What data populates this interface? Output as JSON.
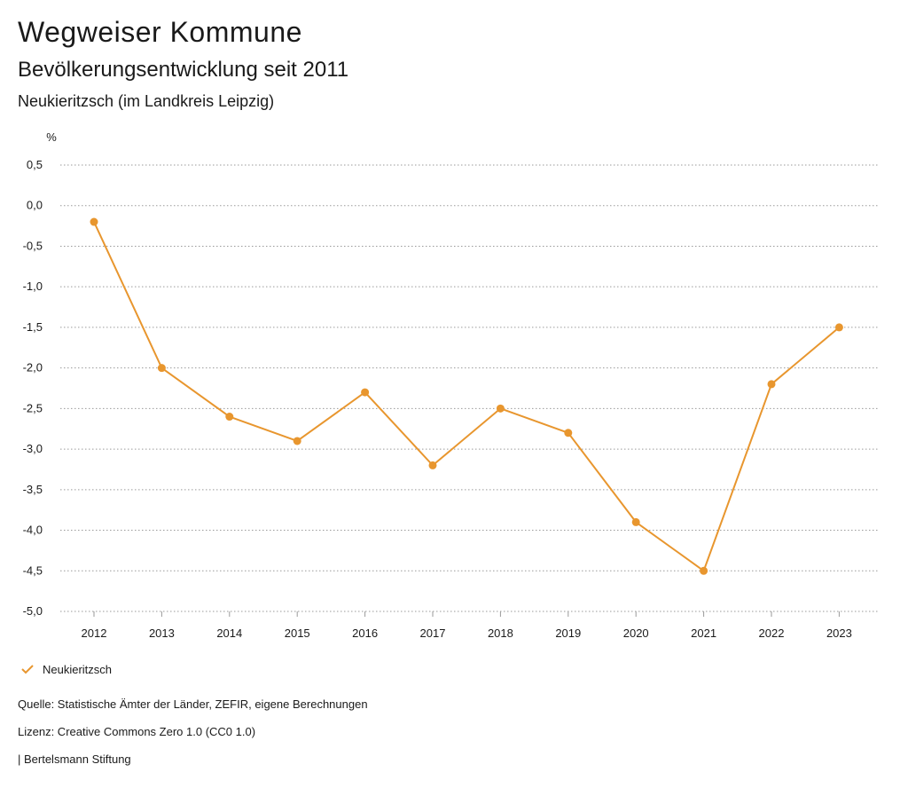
{
  "header": {
    "title": "Wegweiser Kommune",
    "subtitle": "Bevölkerungsentwicklung seit 2011",
    "region": "Neukieritzsch (im Landkreis Leipzig)"
  },
  "chart_data": {
    "type": "line",
    "ylabel": "%",
    "ylim": [
      -5.0,
      0.5
    ],
    "yticks": [
      "0,5",
      "0,0",
      "-0,5",
      "-1,0",
      "-1,5",
      "-2,0",
      "-2,5",
      "-3,0",
      "-3,5",
      "-4,0",
      "-4,5",
      "-5,0"
    ],
    "ytick_values": [
      0.5,
      0.0,
      -0.5,
      -1.0,
      -1.5,
      -2.0,
      -2.5,
      -3.0,
      -3.5,
      -4.0,
      -4.5,
      -5.0
    ],
    "categories": [
      "2012",
      "2013",
      "2014",
      "2015",
      "2016",
      "2017",
      "2018",
      "2019",
      "2020",
      "2021",
      "2022",
      "2023"
    ],
    "series": [
      {
        "name": "Neukieritzsch",
        "color": "#e8962e",
        "values": [
          -0.2,
          -2.0,
          -2.6,
          -2.9,
          -2.3,
          -3.2,
          -2.5,
          -2.8,
          -3.9,
          -4.5,
          -2.2,
          -1.5
        ]
      }
    ],
    "grid": true,
    "legend": "bottom-left"
  },
  "footer": {
    "source": "Quelle: Statistische Ämter der Länder, ZEFIR, eigene Berechnungen",
    "license": "Lizenz: Creative Commons Zero 1.0 (CC0 1.0)",
    "publisher": "| Bertelsmann Stiftung"
  }
}
